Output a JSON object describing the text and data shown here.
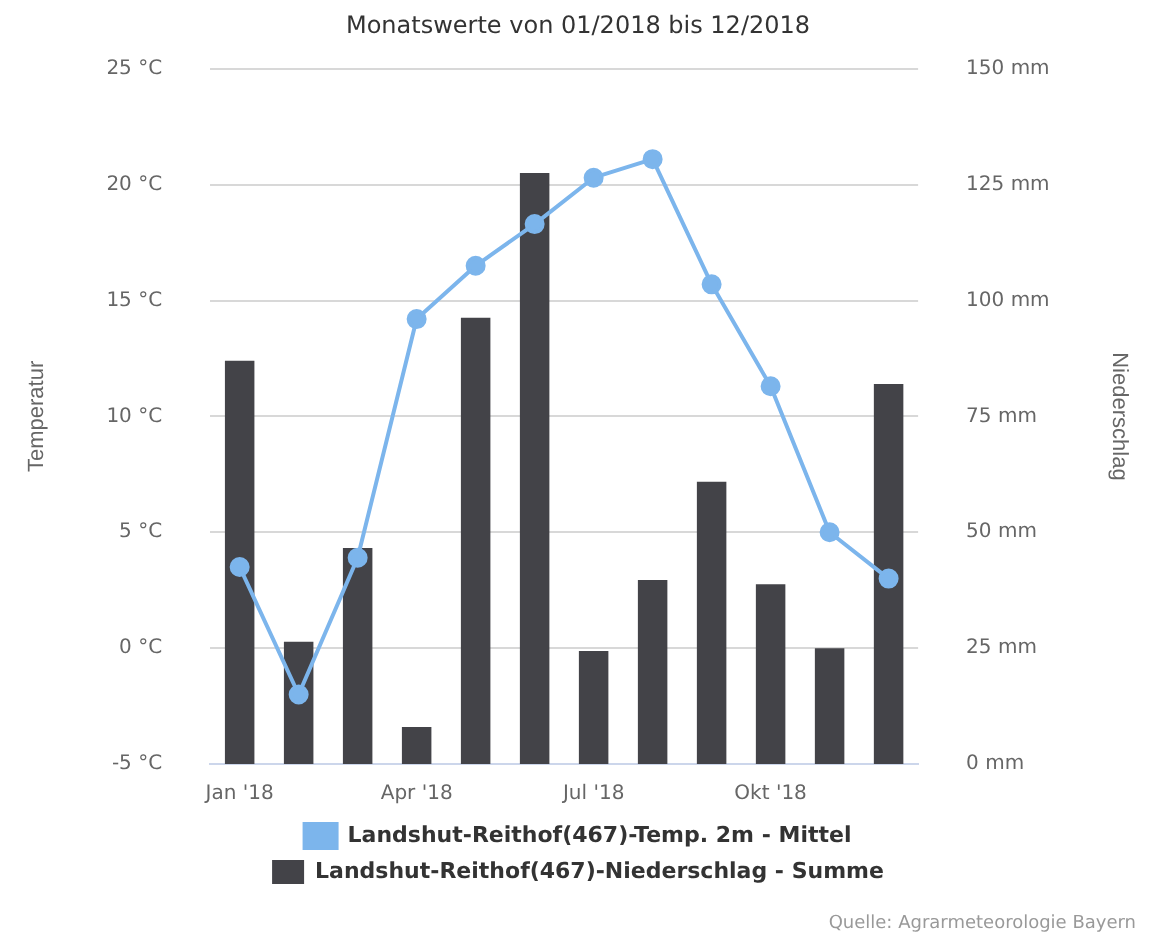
{
  "chart_data": {
    "type": "bar",
    "title": "Monatswerte von 01/2018 bis 12/2018",
    "ylabel": "Temperatur",
    "y2label": "Niederschlag",
    "categories": [
      "Jan '18",
      null,
      null,
      "Apr '18",
      null,
      null,
      "Jul '18",
      null,
      null,
      "Okt '18",
      null,
      null
    ],
    "series": [
      {
        "name": "Landshut-Reithof(467)-Temp. 2m - Mittel",
        "type": "line",
        "color": "#7cb5ec",
        "values": [
          3.5,
          -2,
          3.9,
          14.2,
          16.5,
          18.3,
          20.3,
          21.1,
          15.7,
          11.3,
          5.0,
          3.0
        ]
      },
      {
        "name": "Landshut-Reithof(467)-Niederschlag - Summe",
        "axis": "y2",
        "color": "#434348",
        "values": [
          87,
          26.4,
          46.6,
          8,
          96.3,
          127.5,
          24.4,
          39.7,
          60.9,
          38.8,
          25,
          82
        ]
      }
    ],
    "ylim": [
      -5,
      25
    ],
    "yticks": [
      {
        "value": -5,
        "label": "-5 °C"
      },
      {
        "value": 0,
        "label": "0 °C"
      },
      {
        "value": 5,
        "label": "5 °C"
      },
      {
        "value": 10,
        "label": "10 °C"
      },
      {
        "value": 15,
        "label": "15 °C"
      },
      {
        "value": 20,
        "label": "20 °C"
      },
      {
        "value": 25,
        "label": "25 °C"
      }
    ],
    "y2lim": [
      0,
      150
    ],
    "y2ticks": [
      {
        "value": 0,
        "label": "0 mm"
      },
      {
        "value": 25,
        "label": "25 mm"
      },
      {
        "value": 50,
        "label": "50 mm"
      },
      {
        "value": 75,
        "label": "75 mm"
      },
      {
        "value": 100,
        "label": "100 mm"
      },
      {
        "value": 125,
        "label": "125 mm"
      },
      {
        "value": 150,
        "label": "150 mm"
      }
    ],
    "grid": "y",
    "legend": "bottom",
    "marker": "circle",
    "annotations": [
      "Quelle: Agrarmeteorologie Bayern"
    ]
  }
}
